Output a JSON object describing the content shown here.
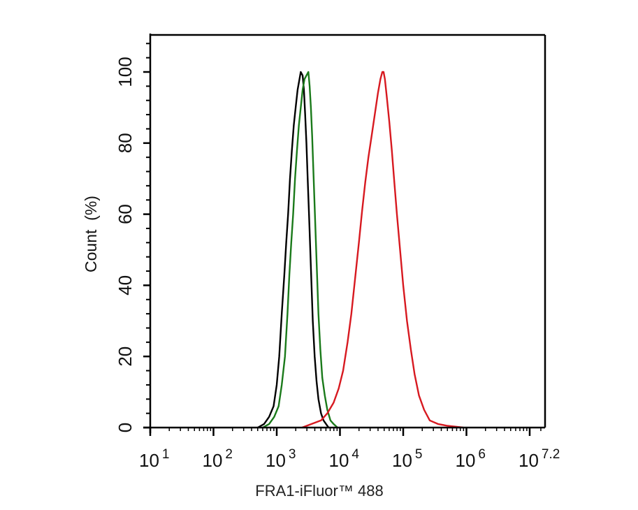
{
  "chart_data": {
    "type": "line",
    "title": "",
    "xlabel": "FRA1-iFluor™ 488",
    "ylabel": "Count  (%)",
    "xscale": "log10",
    "xlim_log10": [
      1,
      7.2
    ],
    "ylim": [
      0,
      110
    ],
    "grid": false,
    "legend": null,
    "x_ticks": [
      {
        "exp": "1",
        "value": 1
      },
      {
        "exp": "2",
        "value": 2
      },
      {
        "exp": "3",
        "value": 3
      },
      {
        "exp": "4",
        "value": 4
      },
      {
        "exp": "5",
        "value": 5
      },
      {
        "exp": "6",
        "value": 6
      },
      {
        "exp": "7.2",
        "value": 7
      }
    ],
    "x_tick_base": "10",
    "y_ticks": [
      0,
      20,
      40,
      60,
      80,
      100
    ],
    "series": [
      {
        "name": "black",
        "color": "#000000",
        "x_log10": [
          2.7,
          2.8,
          2.88,
          2.95,
          3.0,
          3.04,
          3.08,
          3.12,
          3.15,
          3.18,
          3.21,
          3.24,
          3.27,
          3.3,
          3.33,
          3.36,
          3.38,
          3.41,
          3.43,
          3.45,
          3.47,
          3.49,
          3.51,
          3.53,
          3.55,
          3.57,
          3.6,
          3.63,
          3.66,
          3.7,
          3.74,
          3.78,
          3.82
        ],
        "y": [
          0,
          1,
          3,
          6,
          12,
          20,
          32,
          43,
          52,
          60,
          70,
          78,
          85,
          90,
          95,
          98,
          100,
          99,
          95,
          88,
          80,
          70,
          60,
          50,
          40,
          30,
          20,
          13,
          8,
          4,
          2,
          1,
          0
        ]
      },
      {
        "name": "green",
        "color": "#1a7a1a",
        "x_log10": [
          2.78,
          2.88,
          2.96,
          3.03,
          3.08,
          3.13,
          3.17,
          3.2,
          3.23,
          3.26,
          3.29,
          3.32,
          3.35,
          3.38,
          3.41,
          3.44,
          3.47,
          3.5,
          3.52,
          3.54,
          3.56,
          3.58,
          3.6,
          3.62,
          3.64,
          3.66,
          3.69,
          3.72,
          3.76,
          3.8,
          3.85,
          3.9,
          3.96
        ],
        "y": [
          0,
          1,
          3,
          6,
          12,
          20,
          32,
          43,
          52,
          60,
          70,
          78,
          85,
          90,
          95,
          98,
          99,
          100,
          96,
          90,
          82,
          72,
          62,
          52,
          42,
          32,
          22,
          14,
          9,
          5,
          2,
          1,
          0
        ]
      },
      {
        "name": "red",
        "color": "#d71920",
        "x_log10": [
          3.4,
          3.55,
          3.7,
          3.8,
          3.9,
          3.98,
          4.05,
          4.12,
          4.18,
          4.24,
          4.3,
          4.35,
          4.4,
          4.45,
          4.5,
          4.55,
          4.6,
          4.64,
          4.67,
          4.69,
          4.71,
          4.74,
          4.78,
          4.82,
          4.86,
          4.9,
          4.95,
          5.0,
          5.06,
          5.12,
          5.18,
          5.25,
          5.33,
          5.42,
          5.55,
          5.7,
          5.85,
          5.95
        ],
        "y": [
          0,
          1,
          2,
          4,
          7,
          11,
          16,
          24,
          32,
          42,
          52,
          61,
          69,
          76,
          82,
          88,
          94,
          98,
          100,
          100,
          98,
          93,
          86,
          78,
          69,
          60,
          50,
          40,
          30,
          22,
          15,
          9,
          5,
          2,
          1,
          0.5,
          0.2,
          0
        ]
      }
    ]
  }
}
